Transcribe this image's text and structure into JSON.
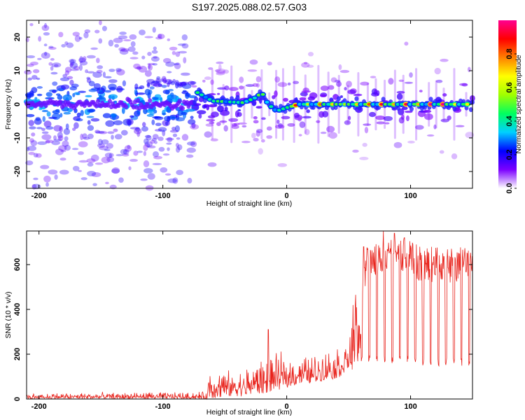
{
  "title": "S197.2025.088.02.57.G03",
  "chart_data": [
    {
      "type": "heatmap",
      "xlabel": "Height of straight line (km)",
      "ylabel": "Frequency (Hz)",
      "xlim": [
        -210,
        150
      ],
      "ylim": [
        -25,
        25
      ],
      "x_ticks": [
        -200,
        -100,
        0,
        100
      ],
      "y_ticks": [
        -20,
        -10,
        0,
        10,
        20
      ],
      "colorbar": {
        "label": "Normalized spectral amplitude",
        "range": [
          0,
          1
        ],
        "ticks": [
          "0.0",
          "0.2",
          "0.4",
          "0.6",
          "0.8"
        ],
        "tick_values": [
          0,
          0.2,
          0.4,
          0.6,
          0.8
        ],
        "colors": [
          "#ffffff",
          "#7b00ff",
          "#0000ff",
          "#00d0ff",
          "#00ff60",
          "#a0ff00",
          "#ffff00",
          "#ff8000",
          "#ff0000",
          "#ff0090"
        ]
      },
      "signal_track": [
        {
          "x": -210,
          "y": 0
        },
        {
          "x": -75,
          "y": 0
        },
        {
          "x": -72,
          "y": 3.5
        },
        {
          "x": -60,
          "y": 1
        },
        {
          "x": -35,
          "y": 0.5
        },
        {
          "x": -25,
          "y": 2
        },
        {
          "x": -20,
          "y": 3.5
        },
        {
          "x": -15,
          "y": 0
        },
        {
          "x": -8,
          "y": -2
        },
        {
          "x": 0,
          "y": -1
        },
        {
          "x": 10,
          "y": 0
        },
        {
          "x": 150,
          "y": 0
        }
      ]
    },
    {
      "type": "line",
      "xlabel": "Height of straight line (km)",
      "ylabel": "SNR (10 * v/v)",
      "xlim": [
        -210,
        150
      ],
      "ylim": [
        0,
        750
      ],
      "x_ticks": [
        -200,
        -100,
        0,
        100
      ],
      "y_ticks": [
        0,
        200,
        400,
        600
      ],
      "color": "#e8231c",
      "envelope": [
        {
          "x": -210,
          "low": 0,
          "high": 30
        },
        {
          "x": -65,
          "low": 0,
          "high": 35
        },
        {
          "x": -62,
          "low": 0,
          "high": 160
        },
        {
          "x": -40,
          "low": 10,
          "high": 130
        },
        {
          "x": -20,
          "low": 20,
          "high": 200
        },
        {
          "x": 0,
          "low": 50,
          "high": 220
        },
        {
          "x": 20,
          "low": 70,
          "high": 210
        },
        {
          "x": 40,
          "low": 90,
          "high": 250
        },
        {
          "x": 50,
          "low": 120,
          "high": 290
        },
        {
          "x": 55,
          "low": 140,
          "high": 520
        },
        {
          "x": 60,
          "low": 150,
          "high": 580
        },
        {
          "x": 65,
          "low": 160,
          "high": 700
        },
        {
          "x": 90,
          "low": 160,
          "high": 730
        },
        {
          "x": 110,
          "low": 150,
          "high": 680
        },
        {
          "x": 150,
          "low": 140,
          "high": 680
        }
      ],
      "spikes": [
        {
          "x": -15,
          "y": 310
        },
        {
          "x": 62,
          "y": 680
        },
        {
          "x": 78,
          "y": 750
        },
        {
          "x": 87,
          "y": 740
        },
        {
          "x": 95,
          "y": 720
        }
      ]
    }
  ]
}
